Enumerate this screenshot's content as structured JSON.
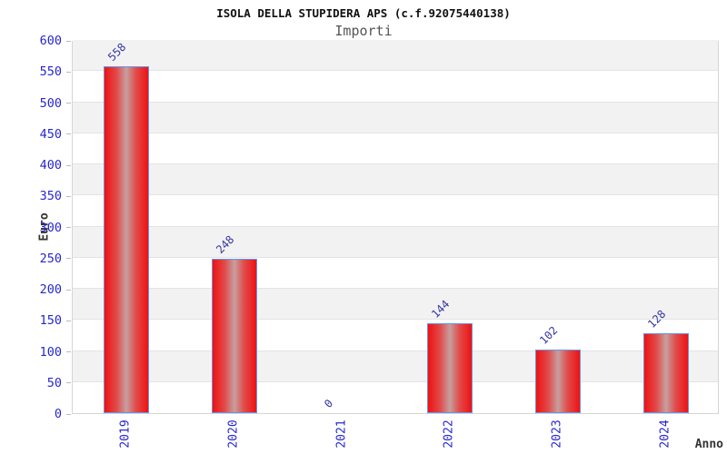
{
  "chart_data": {
    "type": "bar",
    "title": "ISOLA DELLA STUPIDERA APS (c.f.92075440138)",
    "subtitle": "Importi",
    "xlabel": "Anno",
    "ylabel": "Euro",
    "categories": [
      "2019",
      "2020",
      "2021",
      "2022",
      "2023",
      "2024"
    ],
    "values": [
      558,
      248,
      0,
      144,
      102,
      128
    ],
    "ylim": [
      0,
      600
    ],
    "ytick_step": 50,
    "yticks": [
      0,
      50,
      100,
      150,
      200,
      250,
      300,
      350,
      400,
      450,
      500,
      550,
      600
    ],
    "grid": "horizontal-bands-every-50",
    "legend": "none",
    "bar_value_labels_rotated_deg": -45,
    "x_tick_labels_rotated_deg": -90,
    "colors": {
      "bar_red": "#ee1212",
      "bar_center_sheen": "#c79f9f",
      "bar_border_blue": "#6495ed",
      "axis_tick_label_blue": "#2727cf",
      "value_label_navy": "#3434a4",
      "band_gray": "#f2f2f2",
      "plot_border_gray": "#d6d6d6",
      "title_color": "#111111",
      "subtitle_color": "#555555",
      "axis_title_color": "#333333"
    }
  }
}
